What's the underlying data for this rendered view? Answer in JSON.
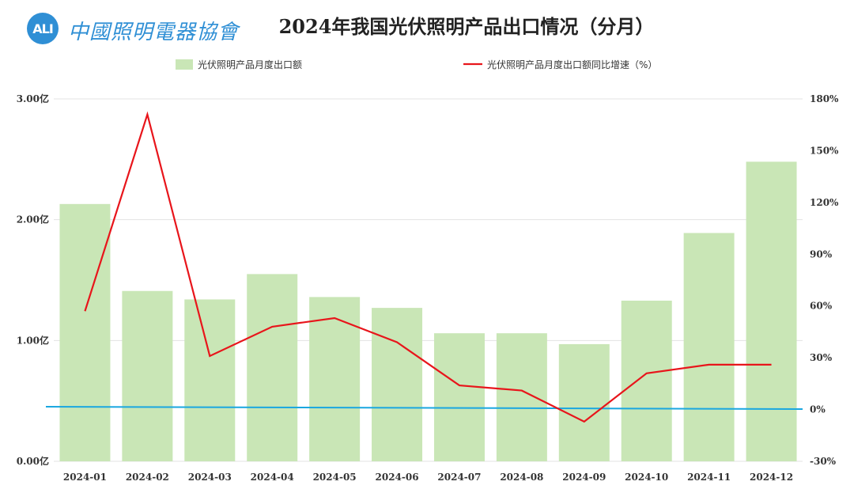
{
  "header": {
    "logo_badge": "ALI",
    "logo_text": "中國照明電器協會",
    "title": "2024年我国光伏照明产品出口情况（分月）"
  },
  "colors": {
    "bar": "#c9e6b6",
    "line": "#e8151b",
    "baseline": "#1aa7e0",
    "grid": "#e3e3e3"
  },
  "chart_data": {
    "type": "bar",
    "title": "2024年我国光伏照明产品出口情况（分月）",
    "categories": [
      "2024-01",
      "2024-02",
      "2024-03",
      "2024-04",
      "2024-05",
      "2024-06",
      "2024-07",
      "2024-08",
      "2024-09",
      "2024-10",
      "2024-11",
      "2024-12"
    ],
    "series": [
      {
        "name": "光伏照明产品月度出口额",
        "type": "bar",
        "axis": "left",
        "values": [
          2.13,
          1.41,
          1.34,
          1.55,
          1.36,
          1.27,
          1.06,
          1.06,
          0.97,
          1.33,
          1.89,
          2.48
        ]
      },
      {
        "name": "光伏照明产品月度出口额同比增速（%）",
        "type": "line",
        "axis": "right",
        "values": [
          57,
          171,
          31,
          48,
          53,
          39,
          14,
          11,
          -7,
          21,
          26,
          26
        ]
      }
    ],
    "y_left": {
      "ticks": [
        "0.00亿",
        "1.00亿",
        "2.00亿",
        "3.00亿"
      ],
      "tick_values": [
        0,
        1,
        2,
        3
      ],
      "range": [
        0,
        3
      ]
    },
    "y_right": {
      "ticks": [
        "-30%",
        "0%",
        "30%",
        "60%",
        "90%",
        "120%",
        "150%",
        "180%"
      ],
      "tick_values": [
        -30,
        0,
        30,
        60,
        90,
        120,
        150,
        180
      ],
      "range": [
        -30,
        180
      ]
    },
    "legend_position": "top-center",
    "grid": true
  }
}
